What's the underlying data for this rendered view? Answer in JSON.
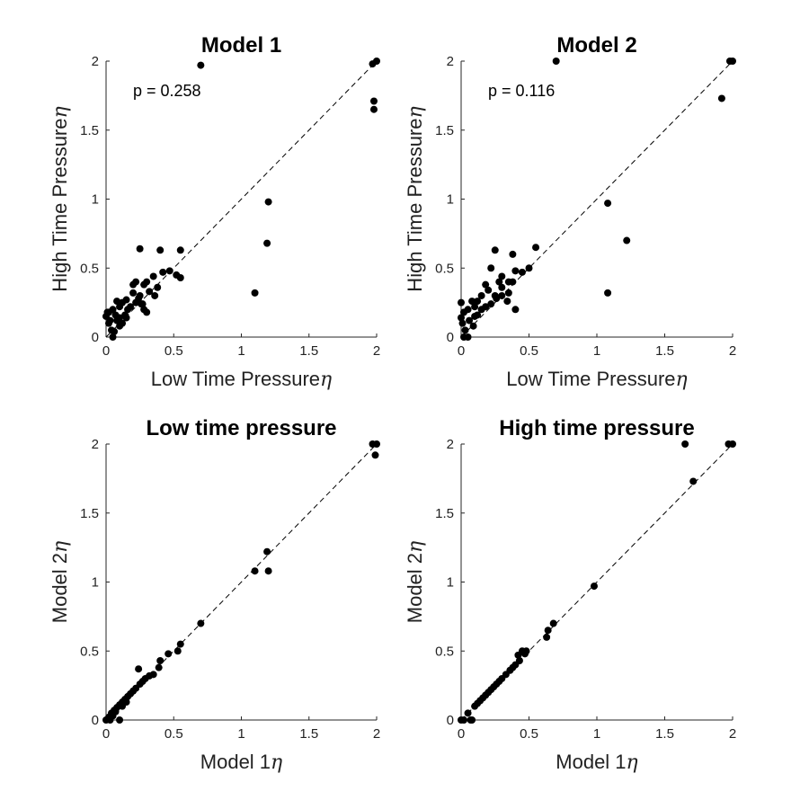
{
  "chart_data": [
    {
      "type": "scatter",
      "title": "Model 1",
      "xlabel": "Low Time Pressure",
      "ylabel": "High Time Pressure",
      "axis_symbol": "η",
      "annotation": "p = 0.258",
      "xlim": [
        0,
        2
      ],
      "ylim": [
        0,
        2
      ],
      "xticks": [
        "0",
        "0.5",
        "1",
        "1.5",
        "2"
      ],
      "yticks": [
        "0",
        "0.5",
        "1",
        "1.5",
        "2"
      ],
      "grid": false,
      "reference_line": "y = x",
      "x": [
        0.7,
        1.97,
        2.0,
        1.98,
        1.98,
        1.2,
        1.19,
        1.1,
        0.25,
        0.4,
        0.55,
        0.55,
        0.52,
        0.47,
        0.42,
        0.35,
        0.3,
        0.22,
        0.28,
        0.25,
        0.32,
        0.38,
        0.36,
        0.27,
        0.2,
        0.2,
        0.15,
        0.12,
        0.1,
        0.08,
        0.05,
        0.02,
        0.0,
        0.02,
        0.04,
        0.06,
        0.08,
        0.1,
        0.12,
        0.14,
        0.16,
        0.18,
        0.22,
        0.24,
        0.26,
        0.28,
        0.3,
        0.1,
        0.05,
        0.03,
        0.07,
        0.15,
        0.01
      ],
      "y": [
        1.97,
        1.98,
        2.0,
        1.71,
        1.65,
        0.98,
        0.68,
        0.32,
        0.64,
        0.63,
        0.63,
        0.43,
        0.45,
        0.48,
        0.47,
        0.44,
        0.4,
        0.4,
        0.38,
        0.3,
        0.33,
        0.36,
        0.3,
        0.24,
        0.38,
        0.32,
        0.27,
        0.25,
        0.22,
        0.26,
        0.2,
        0.18,
        0.15,
        0.1,
        0.05,
        0.04,
        0.12,
        0.14,
        0.1,
        0.16,
        0.2,
        0.22,
        0.25,
        0.28,
        0.24,
        0.2,
        0.18,
        0.08,
        0.0,
        0.12,
        0.16,
        0.14,
        0.18
      ]
    },
    {
      "type": "scatter",
      "title": "Model 2",
      "xlabel": "Low Time Pressure",
      "ylabel": "High Time Pressure",
      "axis_symbol": "η",
      "annotation": "p = 0.116",
      "xlim": [
        0,
        2
      ],
      "ylim": [
        0,
        2
      ],
      "xticks": [
        "0",
        "0.5",
        "1",
        "1.5",
        "2"
      ],
      "yticks": [
        "0",
        "0.5",
        "1",
        "1.5",
        "2"
      ],
      "grid": false,
      "reference_line": "y = x",
      "x": [
        0.7,
        1.98,
        2.0,
        1.92,
        1.08,
        1.08,
        1.22,
        0.25,
        0.38,
        0.55,
        0.5,
        0.45,
        0.4,
        0.35,
        0.3,
        0.28,
        0.22,
        0.18,
        0.25,
        0.3,
        0.35,
        0.4,
        0.2,
        0.15,
        0.12,
        0.1,
        0.08,
        0.05,
        0.02,
        0.0,
        0.01,
        0.03,
        0.06,
        0.09,
        0.12,
        0.15,
        0.18,
        0.22,
        0.26,
        0.3,
        0.34,
        0.38,
        0.05,
        0.1,
        0.0,
        0.02
      ],
      "y": [
        2.0,
        2.0,
        2.0,
        1.73,
        0.97,
        0.32,
        0.7,
        0.63,
        0.6,
        0.65,
        0.5,
        0.47,
        0.48,
        0.4,
        0.44,
        0.4,
        0.5,
        0.38,
        0.3,
        0.36,
        0.32,
        0.2,
        0.34,
        0.3,
        0.26,
        0.22,
        0.26,
        0.2,
        0.18,
        0.14,
        0.1,
        0.05,
        0.12,
        0.08,
        0.16,
        0.2,
        0.22,
        0.24,
        0.28,
        0.3,
        0.26,
        0.4,
        0.0,
        0.15,
        0.25,
        0.0
      ]
    },
    {
      "type": "scatter",
      "title": "Low time pressure",
      "xlabel": "Model 1",
      "ylabel": "Model 2",
      "axis_symbol": "η",
      "annotation": "",
      "xlim": [
        0,
        2
      ],
      "ylim": [
        0,
        2
      ],
      "xticks": [
        "0",
        "0.5",
        "1",
        "1.5",
        "2"
      ],
      "yticks": [
        "0",
        "0.5",
        "1",
        "1.5",
        "2"
      ],
      "grid": false,
      "reference_line": "y = x",
      "x": [
        1.97,
        2.0,
        1.99,
        1.19,
        1.2,
        1.1,
        0.7,
        0.55,
        0.53,
        0.46,
        0.4,
        0.39,
        0.35,
        0.27,
        0.25,
        0.22,
        0.2,
        0.18,
        0.16,
        0.14,
        0.12,
        0.1,
        0.08,
        0.06,
        0.04,
        0.02,
        0.0,
        0.05,
        0.1,
        0.15,
        0.24,
        0.29,
        0.32,
        0.12,
        0.07,
        0.03
      ],
      "y": [
        2.0,
        2.0,
        1.92,
        1.22,
        1.08,
        1.08,
        0.7,
        0.55,
        0.5,
        0.48,
        0.43,
        0.38,
        0.33,
        0.28,
        0.26,
        0.23,
        0.21,
        0.19,
        0.17,
        0.15,
        0.13,
        0.11,
        0.09,
        0.07,
        0.05,
        0.02,
        0.0,
        0.03,
        0.0,
        0.13,
        0.37,
        0.3,
        0.32,
        0.1,
        0.06,
        0.0
      ]
    },
    {
      "type": "scatter",
      "title": "High time pressure",
      "xlabel": "Model 1",
      "ylabel": "Model 2",
      "axis_symbol": "η",
      "annotation": "",
      "xlim": [
        0,
        2
      ],
      "ylim": [
        0,
        2
      ],
      "xticks": [
        "0",
        "0.5",
        "1",
        "1.5",
        "2"
      ],
      "yticks": [
        "0",
        "0.5",
        "1",
        "1.5",
        "2"
      ],
      "grid": false,
      "reference_line": "y = x",
      "x": [
        1.65,
        1.97,
        2.0,
        1.71,
        0.98,
        0.68,
        0.64,
        0.63,
        0.48,
        0.47,
        0.45,
        0.43,
        0.42,
        0.4,
        0.38,
        0.36,
        0.33,
        0.3,
        0.28,
        0.26,
        0.24,
        0.22,
        0.2,
        0.18,
        0.16,
        0.14,
        0.12,
        0.1,
        0.08,
        0.05,
        0.02,
        0.0,
        0.07
      ],
      "y": [
        2.0,
        2.0,
        2.0,
        1.73,
        0.97,
        0.7,
        0.65,
        0.6,
        0.5,
        0.48,
        0.5,
        0.43,
        0.47,
        0.4,
        0.38,
        0.36,
        0.33,
        0.3,
        0.28,
        0.26,
        0.24,
        0.22,
        0.2,
        0.18,
        0.16,
        0.14,
        0.12,
        0.1,
        0.0,
        0.05,
        0.0,
        0.0,
        0.0
      ]
    }
  ]
}
